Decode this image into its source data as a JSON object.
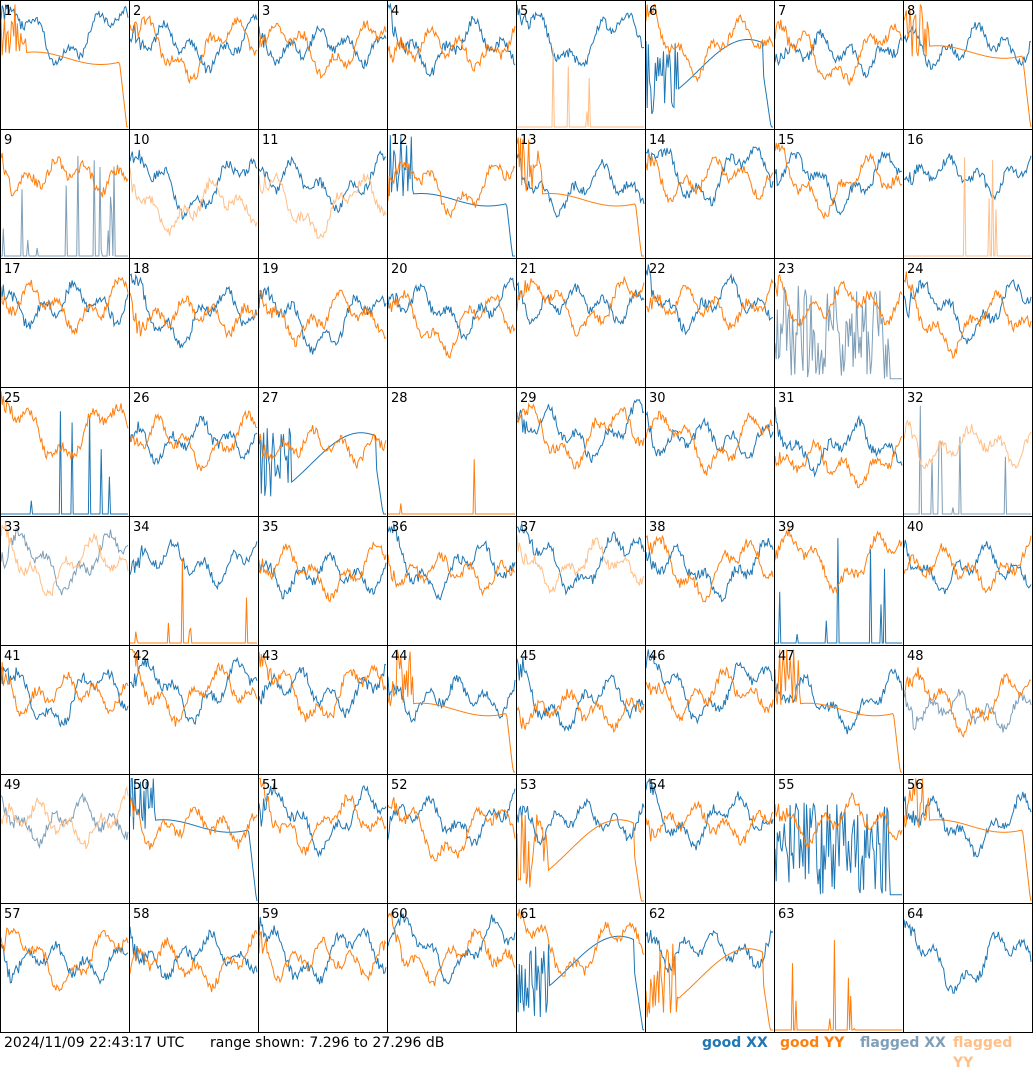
{
  "colors": {
    "good_xx": "#1f77b4",
    "good_yy": "#ff7f0e",
    "flagged_xx": "#7f9fb8",
    "flagged_yy": "#ffbf87",
    "grid_line": "#000000",
    "background": "#ffffff"
  },
  "footer": {
    "timestamp": "2024/11/09 22:43:17 UTC",
    "range_text": "range shown: 7.296 to 27.296 dB",
    "legend_good_xx": "good XX",
    "legend_good_yy": "good YY",
    "legend_flagged_xx": "flagged XX",
    "legend_flagged_yy": "flagged YY"
  },
  "chart_data": {
    "type": "line",
    "layout": "small-multiples 8x8",
    "y_range_db": [
      7.296,
      27.296
    ],
    "tiles": [
      {
        "id": "1",
        "xx": {
          "s": "band",
          "f": false,
          "b": 0.22
        },
        "yy": {
          "s": "rolloff",
          "f": false,
          "b": 0.45
        }
      },
      {
        "id": "2",
        "xx": {
          "s": "band",
          "f": false,
          "b": 0.3
        },
        "yy": {
          "s": "band",
          "f": false,
          "b": 0.32
        }
      },
      {
        "id": "3",
        "xx": {
          "s": "band",
          "f": false,
          "b": 0.3
        },
        "yy": {
          "s": "band",
          "f": false,
          "b": 0.32
        }
      },
      {
        "id": "4",
        "xx": {
          "s": "band",
          "f": false,
          "b": 0.3
        },
        "yy": {
          "s": "band",
          "f": false,
          "b": 0.32
        }
      },
      {
        "id": "5",
        "xx": {
          "s": "band",
          "f": false,
          "b": 0.25
        },
        "yy": {
          "s": "spikes",
          "f": true,
          "b": 1.0
        }
      },
      {
        "id": "6",
        "xx": {
          "s": "dip_rolloff",
          "f": false,
          "b": 0.55
        },
        "yy": {
          "s": "band",
          "f": false,
          "b": 0.3
        }
      },
      {
        "id": "7",
        "xx": {
          "s": "band",
          "f": false,
          "b": 0.35
        },
        "yy": {
          "s": "band",
          "f": false,
          "b": 0.38
        }
      },
      {
        "id": "8",
        "xx": {
          "s": "band",
          "f": false,
          "b": 0.3
        },
        "yy": {
          "s": "rolloff",
          "f": false,
          "b": 0.4
        }
      },
      {
        "id": "9",
        "xx": {
          "s": "spikes",
          "f": true,
          "b": 1.0
        },
        "yy": {
          "s": "band",
          "f": false,
          "b": 0.3
        }
      },
      {
        "id": "10",
        "xx": {
          "s": "band",
          "f": false,
          "b": 0.4
        },
        "yy": {
          "s": "band",
          "f": true,
          "b": 0.55
        }
      },
      {
        "id": "11",
        "xx": {
          "s": "band",
          "f": false,
          "b": 0.38
        },
        "yy": {
          "s": "band",
          "f": true,
          "b": 0.55
        }
      },
      {
        "id": "12",
        "xx": {
          "s": "rolloff",
          "f": false,
          "b": 0.55
        },
        "yy": {
          "s": "band",
          "f": false,
          "b": 0.4
        }
      },
      {
        "id": "13",
        "xx": {
          "s": "band",
          "f": false,
          "b": 0.4
        },
        "yy": {
          "s": "rolloff",
          "f": false,
          "b": 0.55
        }
      },
      {
        "id": "14",
        "xx": {
          "s": "band",
          "f": false,
          "b": 0.3
        },
        "yy": {
          "s": "band",
          "f": false,
          "b": 0.32
        }
      },
      {
        "id": "15",
        "xx": {
          "s": "band",
          "f": false,
          "b": 0.35
        },
        "yy": {
          "s": "band",
          "f": false,
          "b": 0.38
        }
      },
      {
        "id": "16",
        "xx": {
          "s": "band",
          "f": false,
          "b": 0.3
        },
        "yy": {
          "s": "spikes",
          "f": true,
          "b": 1.0
        }
      },
      {
        "id": "17",
        "xx": {
          "s": "band",
          "f": false,
          "b": 0.3
        },
        "yy": {
          "s": "band",
          "f": false,
          "b": 0.32
        }
      },
      {
        "id": "18",
        "xx": {
          "s": "band",
          "f": false,
          "b": 0.4
        },
        "yy": {
          "s": "band",
          "f": false,
          "b": 0.38
        }
      },
      {
        "id": "19",
        "xx": {
          "s": "band",
          "f": false,
          "b": 0.45
        },
        "yy": {
          "s": "band",
          "f": false,
          "b": 0.4
        }
      },
      {
        "id": "20",
        "xx": {
          "s": "band",
          "f": false,
          "b": 0.35
        },
        "yy": {
          "s": "band",
          "f": false,
          "b": 0.45
        }
      },
      {
        "id": "21",
        "xx": {
          "s": "band",
          "f": false,
          "b": 0.3
        },
        "yy": {
          "s": "band",
          "f": false,
          "b": 0.32
        }
      },
      {
        "id": "22",
        "xx": {
          "s": "band",
          "f": false,
          "b": 0.3
        },
        "yy": {
          "s": "band",
          "f": false,
          "b": 0.32
        }
      },
      {
        "id": "23",
        "xx": {
          "s": "noise",
          "f": true,
          "b": 0.7
        },
        "yy": {
          "s": "band",
          "f": false,
          "b": 0.3
        }
      },
      {
        "id": "24",
        "xx": {
          "s": "band",
          "f": false,
          "b": 0.35
        },
        "yy": {
          "s": "band",
          "f": false,
          "b": 0.45
        }
      },
      {
        "id": "25",
        "xx": {
          "s": "spikes",
          "f": false,
          "b": 1.0
        },
        "yy": {
          "s": "band",
          "f": false,
          "b": 0.3
        }
      },
      {
        "id": "26",
        "xx": {
          "s": "band",
          "f": false,
          "b": 0.35
        },
        "yy": {
          "s": "band",
          "f": false,
          "b": 0.38
        }
      },
      {
        "id": "27",
        "xx": {
          "s": "dip_rolloff",
          "f": false,
          "b": 0.6
        },
        "yy": {
          "s": "band",
          "f": false,
          "b": 0.4
        }
      },
      {
        "id": "28",
        "xx": {
          "s": "none",
          "f": false,
          "b": 1.0
        },
        "yy": {
          "s": "spikes",
          "f": false,
          "b": 1.0
        }
      },
      {
        "id": "29",
        "xx": {
          "s": "band",
          "f": false,
          "b": 0.3
        },
        "yy": {
          "s": "band",
          "f": false,
          "b": 0.32
        }
      },
      {
        "id": "30",
        "xx": {
          "s": "band",
          "f": false,
          "b": 0.35
        },
        "yy": {
          "s": "band",
          "f": false,
          "b": 0.38
        }
      },
      {
        "id": "31",
        "xx": {
          "s": "band",
          "f": false,
          "b": 0.4
        },
        "yy": {
          "s": "band",
          "f": false,
          "b": 0.55
        }
      },
      {
        "id": "32",
        "xx": {
          "s": "spikes",
          "f": true,
          "b": 1.0
        },
        "yy": {
          "s": "band",
          "f": true,
          "b": 0.4
        }
      },
      {
        "id": "33",
        "xx": {
          "s": "band",
          "f": true,
          "b": 0.3
        },
        "yy": {
          "s": "band",
          "f": true,
          "b": 0.32
        }
      },
      {
        "id": "34",
        "xx": {
          "s": "band",
          "f": false,
          "b": 0.3
        },
        "yy": {
          "s": "spikes",
          "f": false,
          "b": 1.0
        }
      },
      {
        "id": "35",
        "xx": {
          "s": "band",
          "f": false,
          "b": 0.4
        },
        "yy": {
          "s": "band",
          "f": false,
          "b": 0.38
        }
      },
      {
        "id": "36",
        "xx": {
          "s": "band",
          "f": false,
          "b": 0.35
        },
        "yy": {
          "s": "band",
          "f": false,
          "b": 0.38
        }
      },
      {
        "id": "37",
        "xx": {
          "s": "band",
          "f": false,
          "b": 0.3
        },
        "yy": {
          "s": "band",
          "f": true,
          "b": 0.32
        }
      },
      {
        "id": "38",
        "xx": {
          "s": "band",
          "f": false,
          "b": 0.38
        },
        "yy": {
          "s": "band",
          "f": false,
          "b": 0.35
        }
      },
      {
        "id": "39",
        "xx": {
          "s": "spikes",
          "f": false,
          "b": 1.0
        },
        "yy": {
          "s": "band",
          "f": false,
          "b": 0.3
        }
      },
      {
        "id": "40",
        "xx": {
          "s": "band",
          "f": false,
          "b": 0.35
        },
        "yy": {
          "s": "band",
          "f": false,
          "b": 0.35
        }
      },
      {
        "id": "41",
        "xx": {
          "s": "band",
          "f": false,
          "b": 0.35
        },
        "yy": {
          "s": "band",
          "f": false,
          "b": 0.32
        }
      },
      {
        "id": "42",
        "xx": {
          "s": "band",
          "f": false,
          "b": 0.3
        },
        "yy": {
          "s": "band",
          "f": false,
          "b": 0.32
        }
      },
      {
        "id": "43",
        "xx": {
          "s": "band",
          "f": false,
          "b": 0.3
        },
        "yy": {
          "s": "band",
          "f": false,
          "b": 0.32
        }
      },
      {
        "id": "44",
        "xx": {
          "s": "band",
          "f": false,
          "b": 0.35
        },
        "yy": {
          "s": "rolloff",
          "f": false,
          "b": 0.5
        }
      },
      {
        "id": "45",
        "xx": {
          "s": "band",
          "f": false,
          "b": 0.4
        },
        "yy": {
          "s": "band",
          "f": false,
          "b": 0.45
        }
      },
      {
        "id": "46",
        "xx": {
          "s": "band",
          "f": false,
          "b": 0.3
        },
        "yy": {
          "s": "band",
          "f": false,
          "b": 0.32
        }
      },
      {
        "id": "47",
        "xx": {
          "s": "band",
          "f": false,
          "b": 0.4
        },
        "yy": {
          "s": "rolloff",
          "f": false,
          "b": 0.5
        }
      },
      {
        "id": "48",
        "xx": {
          "s": "band",
          "f": true,
          "b": 0.45
        },
        "yy": {
          "s": "band",
          "f": false,
          "b": 0.4
        }
      },
      {
        "id": "49",
        "xx": {
          "s": "band",
          "f": true,
          "b": 0.3
        },
        "yy": {
          "s": "band",
          "f": true,
          "b": 0.32
        }
      },
      {
        "id": "50",
        "xx": {
          "s": "rolloff",
          "f": false,
          "b": 0.4
        },
        "yy": {
          "s": "band",
          "f": false,
          "b": 0.35
        }
      },
      {
        "id": "51",
        "xx": {
          "s": "band",
          "f": false,
          "b": 0.3
        },
        "yy": {
          "s": "band",
          "f": false,
          "b": 0.32
        }
      },
      {
        "id": "52",
        "xx": {
          "s": "band",
          "f": false,
          "b": 0.3
        },
        "yy": {
          "s": "band",
          "f": false,
          "b": 0.4
        }
      },
      {
        "id": "53",
        "xx": {
          "s": "band",
          "f": false,
          "b": 0.3
        },
        "yy": {
          "s": "dip_rolloff",
          "f": false,
          "b": 0.6
        }
      },
      {
        "id": "54",
        "xx": {
          "s": "band",
          "f": false,
          "b": 0.3
        },
        "yy": {
          "s": "band",
          "f": false,
          "b": 0.32
        }
      },
      {
        "id": "55",
        "xx": {
          "s": "noise",
          "f": false,
          "b": 0.9
        },
        "yy": {
          "s": "band",
          "f": false,
          "b": 0.3
        }
      },
      {
        "id": "56",
        "xx": {
          "s": "band",
          "f": false,
          "b": 0.35
        },
        "yy": {
          "s": "rolloff",
          "f": false,
          "b": 0.4
        }
      },
      {
        "id": "57",
        "xx": {
          "s": "band",
          "f": false,
          "b": 0.4
        },
        "yy": {
          "s": "band",
          "f": false,
          "b": 0.38
        }
      },
      {
        "id": "58",
        "xx": {
          "s": "band",
          "f": false,
          "b": 0.35
        },
        "yy": {
          "s": "band",
          "f": false,
          "b": 0.42
        }
      },
      {
        "id": "59",
        "xx": {
          "s": "band",
          "f": false,
          "b": 0.35
        },
        "yy": {
          "s": "band",
          "f": false,
          "b": 0.38
        }
      },
      {
        "id": "60",
        "xx": {
          "s": "band",
          "f": false,
          "b": 0.3
        },
        "yy": {
          "s": "band",
          "f": false,
          "b": 0.35
        }
      },
      {
        "id": "61",
        "xx": {
          "s": "dip_rolloff",
          "f": false,
          "b": 0.5
        },
        "yy": {
          "s": "band",
          "f": false,
          "b": 0.3
        }
      },
      {
        "id": "62",
        "xx": {
          "s": "band",
          "f": false,
          "b": 0.3
        },
        "yy": {
          "s": "dip_rolloff",
          "f": false,
          "b": 0.6
        }
      },
      {
        "id": "63",
        "xx": {
          "s": "none",
          "f": false,
          "b": 1.0
        },
        "yy": {
          "s": "spikes",
          "f": false,
          "b": 1.0
        }
      },
      {
        "id": "64",
        "xx": {
          "s": "band",
          "f": false,
          "b": 0.4
        },
        "yy": {
          "s": "none",
          "f": false,
          "b": 1.0
        }
      }
    ]
  }
}
